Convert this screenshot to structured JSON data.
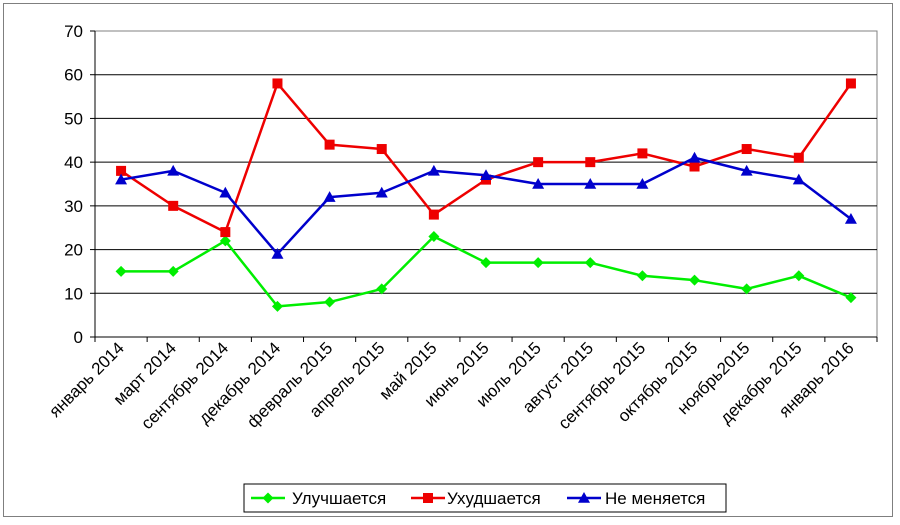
{
  "chart_data": {
    "type": "line",
    "categories": [
      "январь 2014",
      "март 2014",
      "сентябрь 2014",
      "декабрь 2014",
      "февраль 2015",
      "апрель 2015",
      "май 2015",
      "июнь 2015",
      "июль 2015",
      "август 2015",
      "сентябрь 2015",
      "октябрь 2015",
      "ноябрь2015",
      "декабрь 2015",
      "январь 2016"
    ],
    "series": [
      {
        "name": "Улучшается",
        "color": "#00ee00",
        "marker": "diamond",
        "values": [
          15,
          15,
          22,
          7,
          8,
          11,
          23,
          17,
          17,
          17,
          14,
          13,
          11,
          14,
          9
        ]
      },
      {
        "name": "Ухудшается",
        "color": "#ee0000",
        "marker": "square",
        "values": [
          38,
          30,
          24,
          58,
          44,
          43,
          28,
          36,
          40,
          40,
          42,
          39,
          43,
          41,
          58
        ]
      },
      {
        "name": "Не меняется",
        "color": "#0000cc",
        "marker": "triangle",
        "values": [
          36,
          38,
          33,
          19,
          32,
          33,
          38,
          37,
          35,
          35,
          35,
          41,
          38,
          36,
          27
        ]
      }
    ],
    "ylim": [
      0,
      70
    ],
    "yticks": [
      0,
      10,
      20,
      30,
      40,
      50,
      60,
      70
    ],
    "grid": true,
    "legend": "bottom-center"
  }
}
